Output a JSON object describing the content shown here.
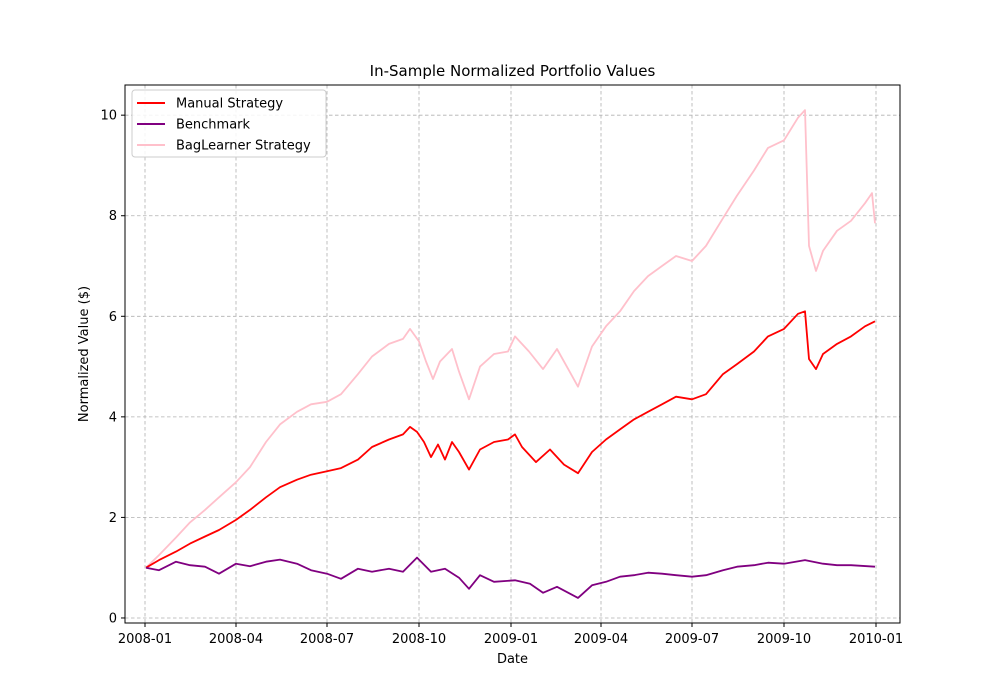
{
  "chart_data": {
    "type": "line",
    "title": "In-Sample Normalized Portfolio Values",
    "xlabel": "Date",
    "ylabel": "Normalized Value ($)",
    "x_range": [
      "2007-12-12",
      "2010-01-25"
    ],
    "ylim": [
      -0.1,
      10.6
    ],
    "x_ticks": [
      {
        "date": "2008-01-01",
        "label": "2008-01"
      },
      {
        "date": "2008-04-01",
        "label": "2008-04"
      },
      {
        "date": "2008-07-01",
        "label": "2008-07"
      },
      {
        "date": "2008-10-01",
        "label": "2008-10"
      },
      {
        "date": "2009-01-01",
        "label": "2009-01"
      },
      {
        "date": "2009-04-01",
        "label": "2009-04"
      },
      {
        "date": "2009-07-01",
        "label": "2009-07"
      },
      {
        "date": "2009-10-01",
        "label": "2009-10"
      },
      {
        "date": "2010-01-01",
        "label": "2010-01"
      }
    ],
    "y_ticks": [
      0,
      2,
      4,
      6,
      8,
      10
    ],
    "grid": true,
    "grid_style": "dashed",
    "legend_position": "top-left",
    "series": [
      {
        "name": "Manual Strategy",
        "color": "#ff0000",
        "points": [
          [
            "2008-01-02",
            1.0
          ],
          [
            "2008-01-15",
            1.15
          ],
          [
            "2008-02-01",
            1.32
          ],
          [
            "2008-02-15",
            1.48
          ],
          [
            "2008-03-01",
            1.62
          ],
          [
            "2008-03-15",
            1.75
          ],
          [
            "2008-04-01",
            1.95
          ],
          [
            "2008-04-15",
            2.15
          ],
          [
            "2008-05-01",
            2.4
          ],
          [
            "2008-05-15",
            2.6
          ],
          [
            "2008-06-01",
            2.75
          ],
          [
            "2008-06-15",
            2.85
          ],
          [
            "2008-07-01",
            2.92
          ],
          [
            "2008-07-15",
            2.98
          ],
          [
            "2008-08-01",
            3.15
          ],
          [
            "2008-08-15",
            3.4
          ],
          [
            "2008-09-01",
            3.55
          ],
          [
            "2008-09-15",
            3.65
          ],
          [
            "2008-09-22",
            3.8
          ],
          [
            "2008-09-29",
            3.7
          ],
          [
            "2008-10-06",
            3.5
          ],
          [
            "2008-10-13",
            3.2
          ],
          [
            "2008-10-20",
            3.45
          ],
          [
            "2008-10-27",
            3.15
          ],
          [
            "2008-11-03",
            3.5
          ],
          [
            "2008-11-10",
            3.3
          ],
          [
            "2008-11-20",
            2.95
          ],
          [
            "2008-12-01",
            3.35
          ],
          [
            "2008-12-15",
            3.5
          ],
          [
            "2008-12-29",
            3.55
          ],
          [
            "2009-01-05",
            3.65
          ],
          [
            "2009-01-12",
            3.4
          ],
          [
            "2009-01-26",
            3.1
          ],
          [
            "2009-02-09",
            3.35
          ],
          [
            "2009-02-23",
            3.05
          ],
          [
            "2009-03-09",
            2.88
          ],
          [
            "2009-03-23",
            3.3
          ],
          [
            "2009-04-06",
            3.55
          ],
          [
            "2009-04-20",
            3.75
          ],
          [
            "2009-05-04",
            3.95
          ],
          [
            "2009-05-18",
            4.1
          ],
          [
            "2009-06-01",
            4.25
          ],
          [
            "2009-06-15",
            4.4
          ],
          [
            "2009-07-01",
            4.35
          ],
          [
            "2009-07-15",
            4.45
          ],
          [
            "2009-08-01",
            4.85
          ],
          [
            "2009-08-15",
            5.05
          ],
          [
            "2009-09-01",
            5.3
          ],
          [
            "2009-09-15",
            5.6
          ],
          [
            "2009-10-01",
            5.75
          ],
          [
            "2009-10-15",
            6.05
          ],
          [
            "2009-10-22",
            6.1
          ],
          [
            "2009-10-26",
            5.15
          ],
          [
            "2009-11-02",
            4.95
          ],
          [
            "2009-11-09",
            5.25
          ],
          [
            "2009-11-23",
            5.45
          ],
          [
            "2009-12-07",
            5.6
          ],
          [
            "2009-12-21",
            5.8
          ],
          [
            "2009-12-31",
            5.9
          ]
        ]
      },
      {
        "name": "Benchmark",
        "color": "#800080",
        "points": [
          [
            "2008-01-02",
            1.0
          ],
          [
            "2008-01-15",
            0.95
          ],
          [
            "2008-02-01",
            1.12
          ],
          [
            "2008-02-15",
            1.05
          ],
          [
            "2008-03-01",
            1.02
          ],
          [
            "2008-03-15",
            0.88
          ],
          [
            "2008-04-01",
            1.08
          ],
          [
            "2008-04-15",
            1.03
          ],
          [
            "2008-05-01",
            1.12
          ],
          [
            "2008-05-15",
            1.16
          ],
          [
            "2008-06-01",
            1.08
          ],
          [
            "2008-06-15",
            0.95
          ],
          [
            "2008-07-01",
            0.88
          ],
          [
            "2008-07-15",
            0.78
          ],
          [
            "2008-08-01",
            0.98
          ],
          [
            "2008-08-15",
            0.92
          ],
          [
            "2008-09-01",
            0.98
          ],
          [
            "2008-09-15",
            0.92
          ],
          [
            "2008-09-29",
            1.2
          ],
          [
            "2008-10-13",
            0.92
          ],
          [
            "2008-10-27",
            0.98
          ],
          [
            "2008-11-10",
            0.8
          ],
          [
            "2008-11-20",
            0.58
          ],
          [
            "2008-12-01",
            0.85
          ],
          [
            "2008-12-15",
            0.72
          ],
          [
            "2009-01-05",
            0.75
          ],
          [
            "2009-01-20",
            0.68
          ],
          [
            "2009-02-02",
            0.5
          ],
          [
            "2009-02-16",
            0.62
          ],
          [
            "2009-03-09",
            0.4
          ],
          [
            "2009-03-23",
            0.65
          ],
          [
            "2009-04-06",
            0.72
          ],
          [
            "2009-04-20",
            0.82
          ],
          [
            "2009-05-04",
            0.85
          ],
          [
            "2009-05-18",
            0.9
          ],
          [
            "2009-06-01",
            0.88
          ],
          [
            "2009-06-15",
            0.85
          ],
          [
            "2009-07-01",
            0.82
          ],
          [
            "2009-07-15",
            0.85
          ],
          [
            "2009-08-01",
            0.95
          ],
          [
            "2009-08-15",
            1.02
          ],
          [
            "2009-09-01",
            1.05
          ],
          [
            "2009-09-15",
            1.1
          ],
          [
            "2009-10-01",
            1.08
          ],
          [
            "2009-10-22",
            1.15
          ],
          [
            "2009-11-09",
            1.08
          ],
          [
            "2009-11-23",
            1.05
          ],
          [
            "2009-12-07",
            1.05
          ],
          [
            "2009-12-31",
            1.02
          ]
        ]
      },
      {
        "name": "BagLearner Strategy",
        "color": "#ffc0cb",
        "points": [
          [
            "2008-01-02",
            1.0
          ],
          [
            "2008-01-15",
            1.25
          ],
          [
            "2008-02-01",
            1.6
          ],
          [
            "2008-02-15",
            1.9
          ],
          [
            "2008-03-01",
            2.15
          ],
          [
            "2008-03-15",
            2.4
          ],
          [
            "2008-04-01",
            2.7
          ],
          [
            "2008-04-15",
            3.0
          ],
          [
            "2008-05-01",
            3.5
          ],
          [
            "2008-05-15",
            3.85
          ],
          [
            "2008-06-01",
            4.1
          ],
          [
            "2008-06-15",
            4.25
          ],
          [
            "2008-07-01",
            4.3
          ],
          [
            "2008-07-15",
            4.45
          ],
          [
            "2008-08-01",
            4.85
          ],
          [
            "2008-08-15",
            5.2
          ],
          [
            "2008-09-01",
            5.45
          ],
          [
            "2008-09-15",
            5.55
          ],
          [
            "2008-09-22",
            5.75
          ],
          [
            "2008-10-01",
            5.5
          ],
          [
            "2008-10-08",
            5.1
          ],
          [
            "2008-10-15",
            4.75
          ],
          [
            "2008-10-22",
            5.1
          ],
          [
            "2008-11-03",
            5.35
          ],
          [
            "2008-11-10",
            4.9
          ],
          [
            "2008-11-20",
            4.35
          ],
          [
            "2008-12-01",
            5.0
          ],
          [
            "2008-12-15",
            5.25
          ],
          [
            "2008-12-29",
            5.3
          ],
          [
            "2009-01-05",
            5.6
          ],
          [
            "2009-01-19",
            5.3
          ],
          [
            "2009-02-02",
            4.95
          ],
          [
            "2009-02-16",
            5.35
          ],
          [
            "2009-03-02",
            4.85
          ],
          [
            "2009-03-09",
            4.6
          ],
          [
            "2009-03-23",
            5.4
          ],
          [
            "2009-04-06",
            5.8
          ],
          [
            "2009-04-20",
            6.1
          ],
          [
            "2009-05-04",
            6.5
          ],
          [
            "2009-05-18",
            6.8
          ],
          [
            "2009-06-01",
            7.0
          ],
          [
            "2009-06-15",
            7.2
          ],
          [
            "2009-07-01",
            7.1
          ],
          [
            "2009-07-15",
            7.4
          ],
          [
            "2009-08-01",
            7.95
          ],
          [
            "2009-08-15",
            8.4
          ],
          [
            "2009-09-01",
            8.9
          ],
          [
            "2009-09-15",
            9.35
          ],
          [
            "2009-10-01",
            9.5
          ],
          [
            "2009-10-15",
            9.95
          ],
          [
            "2009-10-22",
            10.1
          ],
          [
            "2009-10-26",
            7.4
          ],
          [
            "2009-11-02",
            6.9
          ],
          [
            "2009-11-09",
            7.3
          ],
          [
            "2009-11-23",
            7.7
          ],
          [
            "2009-12-07",
            7.9
          ],
          [
            "2009-12-21",
            8.25
          ],
          [
            "2009-12-28",
            8.45
          ],
          [
            "2009-12-31",
            7.85
          ]
        ]
      }
    ]
  }
}
